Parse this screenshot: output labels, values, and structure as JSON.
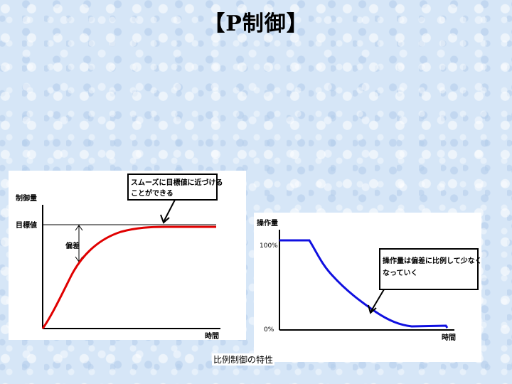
{
  "title": "【P制御】",
  "caption": "比例制御の特性",
  "left_graph": {
    "ylabel": "制御量",
    "xlabel": "時間",
    "setpoint_label": "目標値",
    "deviation_label": "偏差",
    "callout": [
      "スムーズに目標値に近づける",
      "ことができる"
    ],
    "curve_color": "#e00000"
  },
  "right_graph": {
    "ylabel": "操作量",
    "xlabel": "時間",
    "tick_top": "100%",
    "tick_bottom": "0%",
    "callout": [
      "操作量は偏差に比例して少なく",
      "なっていく"
    ],
    "curve_color": "#1010e0"
  }
}
